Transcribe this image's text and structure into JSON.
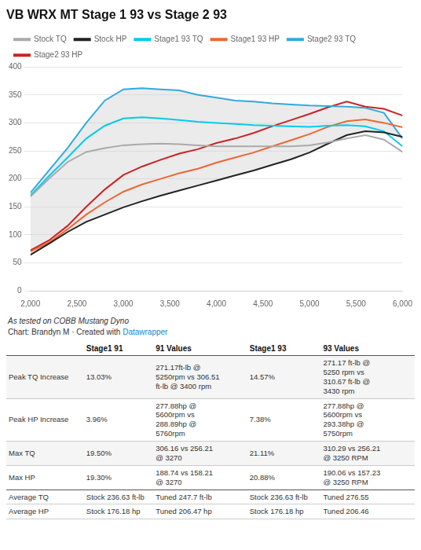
{
  "chart_data": {
    "type": "line",
    "title": "VB WRX MT Stage 1 93 vs Stage 2 93",
    "x": [
      2000,
      2200,
      2400,
      2600,
      2800,
      3000,
      3200,
      3400,
      3600,
      3800,
      4000,
      4200,
      4400,
      4600,
      4800,
      5000,
      5200,
      5400,
      5600,
      5800,
      6000
    ],
    "series": [
      {
        "name": "Stock TQ",
        "color": "#aaaaaa",
        "values": [
          168,
          200,
          230,
          248,
          255,
          260,
          262,
          263,
          262,
          260,
          258,
          258,
          258,
          258,
          258,
          260,
          265,
          272,
          278,
          270,
          248
        ]
      },
      {
        "name": "Stock HP",
        "color": "#222222",
        "values": [
          64,
          84,
          105,
          123,
          136,
          149,
          160,
          170,
          179,
          188,
          197,
          206,
          215,
          225,
          235,
          247,
          263,
          278,
          285,
          283,
          275
        ]
      },
      {
        "name": "Stage1 93 TQ",
        "color": "#00ccee",
        "values": [
          170,
          205,
          238,
          272,
          295,
          308,
          310,
          308,
          305,
          302,
          300,
          298,
          296,
          295,
          294,
          293,
          295,
          296,
          294,
          285,
          258
        ]
      },
      {
        "name": "Stage1 93 HP",
        "color": "#ee6633",
        "values": [
          70,
          86,
          110,
          136,
          158,
          177,
          190,
          200,
          210,
          218,
          229,
          238,
          247,
          258,
          269,
          280,
          293,
          303,
          306,
          300,
          292
        ]
      },
      {
        "name": "Stage2 93 TQ",
        "color": "#33aadd",
        "values": [
          175,
          215,
          255,
          300,
          340,
          360,
          362,
          360,
          358,
          350,
          345,
          340,
          338,
          335,
          333,
          331,
          330,
          329,
          327,
          318,
          272
        ]
      },
      {
        "name": "Stage2 93 HP",
        "color": "#cc2222",
        "values": [
          72,
          90,
          116,
          150,
          181,
          207,
          222,
          234,
          245,
          253,
          264,
          272,
          282,
          294,
          305,
          316,
          328,
          338,
          329,
          325,
          313
        ]
      }
    ],
    "fill_between": {
      "upper": "Stage2 93 TQ",
      "lower": "Stock HP",
      "color": "#cccccc"
    },
    "xlim": [
      2000,
      6000
    ],
    "xticks": [
      {
        "value": 2000,
        "label": "2,000"
      },
      {
        "value": 2500,
        "label": "2,500"
      },
      {
        "value": 3000,
        "label": "3,000"
      },
      {
        "value": 3500,
        "label": "3,500"
      },
      {
        "value": 4000,
        "label": "4,000"
      },
      {
        "value": 4500,
        "label": "4,500"
      },
      {
        "value": 5000,
        "label": "5,000"
      },
      {
        "value": 5500,
        "label": "5,500"
      },
      {
        "value": 6000,
        "label": "6,000"
      }
    ],
    "ylim": [
      0,
      400
    ],
    "yticks": [
      0,
      50,
      100,
      150,
      200,
      250,
      300,
      350,
      400
    ],
    "grid": "y",
    "legend": "top",
    "footnote1": "As tested on COBB Mustang Dyno",
    "footnote2": "Chart: Brandyn M · Created with ",
    "footnote2_link": "Datawrapper",
    "table": {
      "headers": [
        null,
        "Stage1 91",
        "91 Values",
        "Stage1 93",
        "93 Values"
      ],
      "rows": [
        [
          "Peak TQ Increase",
          "13.03%",
          "271.17ft-lb @\n5250rpm vs 306.51\nft-lb @ 3400 rpm",
          "14.57%",
          "271.17 ft-lb @\n5250 rpm vs\n310.67 ft-lb @\n3430 rpm"
        ],
        [
          "Peak HP Increase",
          "3.96%",
          "277.88hp @\n5600rpm vs\n288.89hp @\n5760rpm",
          "7.38%",
          "277.88hp @\n5600rpm vs\n293.38hp @\n5750rpm"
        ],
        [
          "Max TQ",
          "19.50%",
          "306.16 vs 256.21\n@ 3270",
          "21.11%",
          "310.29 vs 256.21\n@ 3250 RPM"
        ],
        [
          "Max HP",
          "19.30%",
          "188.74 vs 158.21\n@ 3270",
          "20.88%",
          "190.06 vs 157.23\n@ 3250 RPM"
        ],
        [
          "Average TQ",
          "Stock 236.63 ft-lb",
          "Tuned 247.7 ft-lb",
          "Stock 236.63 ft-lb",
          "Tuned 276.55"
        ],
        [
          "Average HP",
          "Stock 176.18 hp",
          "Tuned 206.47 hp",
          "Stock 176.18 hp",
          "Tuned 206.46"
        ]
      ]
    }
  }
}
